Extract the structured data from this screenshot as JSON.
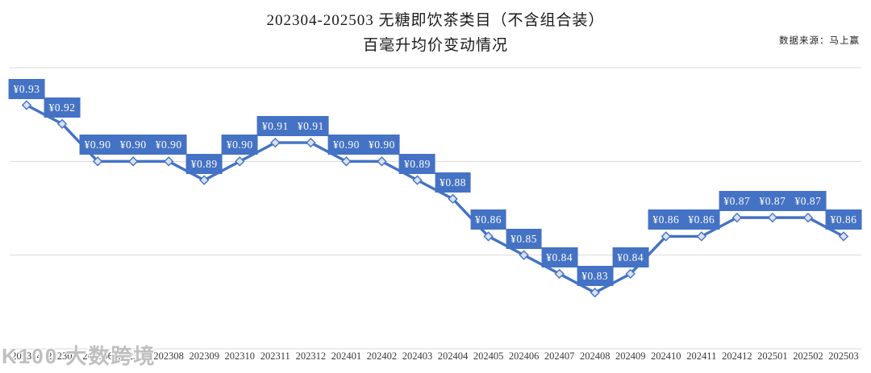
{
  "header": {
    "title_line1": "202304-202503 无糖即饮茶类目（不含组合装）",
    "title_line2": "百毫升均价变动情况",
    "source_note": "数据来源：马上赢"
  },
  "watermark": {
    "text": "K100 大数跨境"
  },
  "chart_data": {
    "type": "line",
    "title": "202304-202503 无糖即饮茶类目（不含组合装）百毫升均价变动情况",
    "xlabel": "",
    "ylabel": "",
    "categories": [
      "202304",
      "202305",
      "202306",
      "202307",
      "202308",
      "202309",
      "202310",
      "202311",
      "202312",
      "202401",
      "202402",
      "202403",
      "202404",
      "202405",
      "202406",
      "202407",
      "202408",
      "202409",
      "202410",
      "202411",
      "202412",
      "202501",
      "202502",
      "202503"
    ],
    "values": [
      0.93,
      0.92,
      0.9,
      0.9,
      0.9,
      0.89,
      0.9,
      0.91,
      0.91,
      0.9,
      0.9,
      0.89,
      0.88,
      0.86,
      0.85,
      0.84,
      0.83,
      0.84,
      0.86,
      0.86,
      0.87,
      0.87,
      0.87,
      0.86
    ],
    "data_labels": [
      "¥0.93",
      "¥0.92",
      "¥0.90",
      "¥0.90",
      "¥0.90",
      "¥0.89",
      "¥0.90",
      "¥0.91",
      "¥0.91",
      "¥0.90",
      "¥0.90",
      "¥0.89",
      "¥0.88",
      "¥0.86",
      "¥0.85",
      "¥0.84",
      "¥0.83",
      "¥0.84",
      "¥0.86",
      "¥0.86",
      "¥0.87",
      "¥0.87",
      "¥0.87",
      "¥0.86"
    ],
    "ylim": [
      0.8,
      0.95
    ],
    "gridline_values": [
      0.95,
      0.9,
      0.85,
      0.8
    ],
    "grid": true,
    "legend_position": "none",
    "marker": "diamond",
    "colors": {
      "line": "#4472C4",
      "marker_fill": "#DAE1F3",
      "marker_stroke": "#4472C4",
      "label_bg": "#4472C4",
      "label_text": "#FFFFFF",
      "gridline": "#D9D9D9"
    }
  }
}
